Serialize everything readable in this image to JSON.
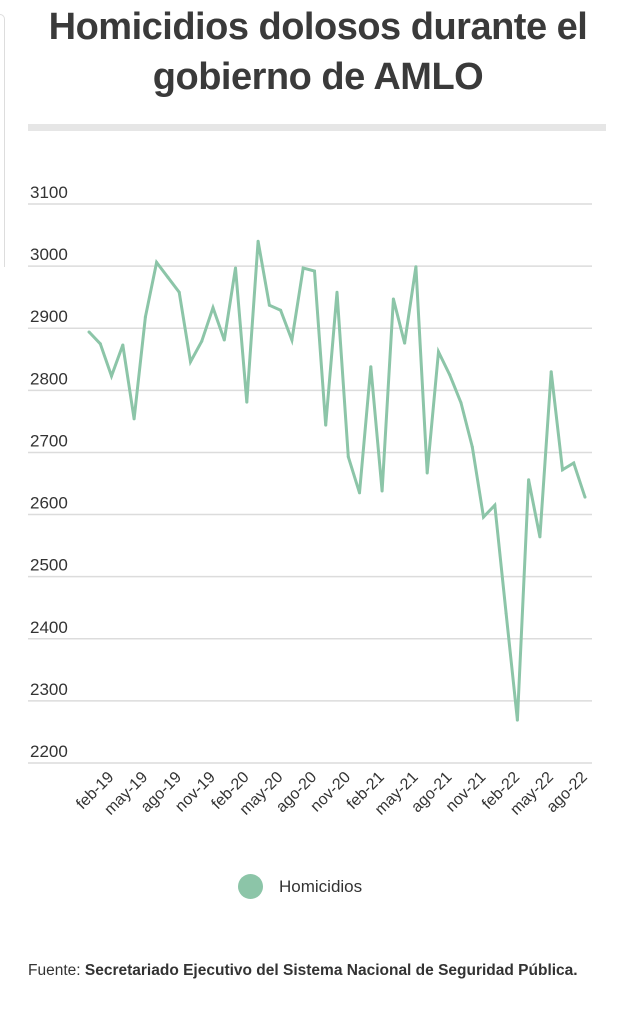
{
  "chart_data": {
    "type": "line",
    "title": "Homicidios dolosos durante el gobierno de AMLO",
    "xlabel": "",
    "ylabel": "",
    "ylim": [
      2200,
      3100
    ],
    "yticks": [
      3100,
      3000,
      2900,
      2800,
      2700,
      2600,
      2500,
      2400,
      2300,
      2200
    ],
    "grid": true,
    "legend_position": "bottom",
    "x": [
      "dic-18",
      "ene-19",
      "feb-19",
      "mar-19",
      "abr-19",
      "may-19",
      "jun-19",
      "jul-19",
      "ago-19",
      "sep-19",
      "oct-19",
      "nov-19",
      "dic-19",
      "ene-20",
      "feb-20",
      "mar-20",
      "abr-20",
      "may-20",
      "jun-20",
      "jul-20",
      "ago-20",
      "sep-20",
      "oct-20",
      "nov-20",
      "dic-20",
      "ene-21",
      "feb-21",
      "mar-21",
      "abr-21",
      "may-21",
      "jun-21",
      "jul-21",
      "ago-21",
      "sep-21",
      "oct-21",
      "nov-21",
      "dic-21",
      "ene-22",
      "feb-22",
      "mar-22",
      "abr-22",
      "may-22",
      "jun-22",
      "jul-22",
      "ago-22"
    ],
    "xtick_labels": [
      "feb-19",
      "may-19",
      "ago-19",
      "nov-19",
      "feb-20",
      "may-20",
      "ago-20",
      "nov-20",
      "feb-21",
      "may-21",
      "ago-21",
      "nov-21",
      "feb-22",
      "may-22",
      "ago-22"
    ],
    "series": [
      {
        "name": "Homicidios",
        "color": "#8cc5a8",
        "values": [
          2894,
          2875,
          2823,
          2873,
          2754,
          2918,
          3006,
          2982,
          2958,
          2846,
          2879,
          2933,
          2881,
          2997,
          2781,
          3040,
          2937,
          2929,
          2881,
          2997,
          2992,
          2744,
          2958,
          2693,
          2635,
          2838,
          2638,
          2947,
          2876,
          2999,
          2667,
          2862,
          2825,
          2780,
          2709,
          2596,
          2615,
          2441,
          2269,
          2656,
          2564,
          2830,
          2672,
          2683,
          2628
        ]
      }
    ]
  },
  "legend": {
    "label": "Homicidios"
  },
  "footer": {
    "label": "Fuente:",
    "text": "Secretariado Ejecutivo del Sistema Nacional de Seguridad Pública."
  }
}
